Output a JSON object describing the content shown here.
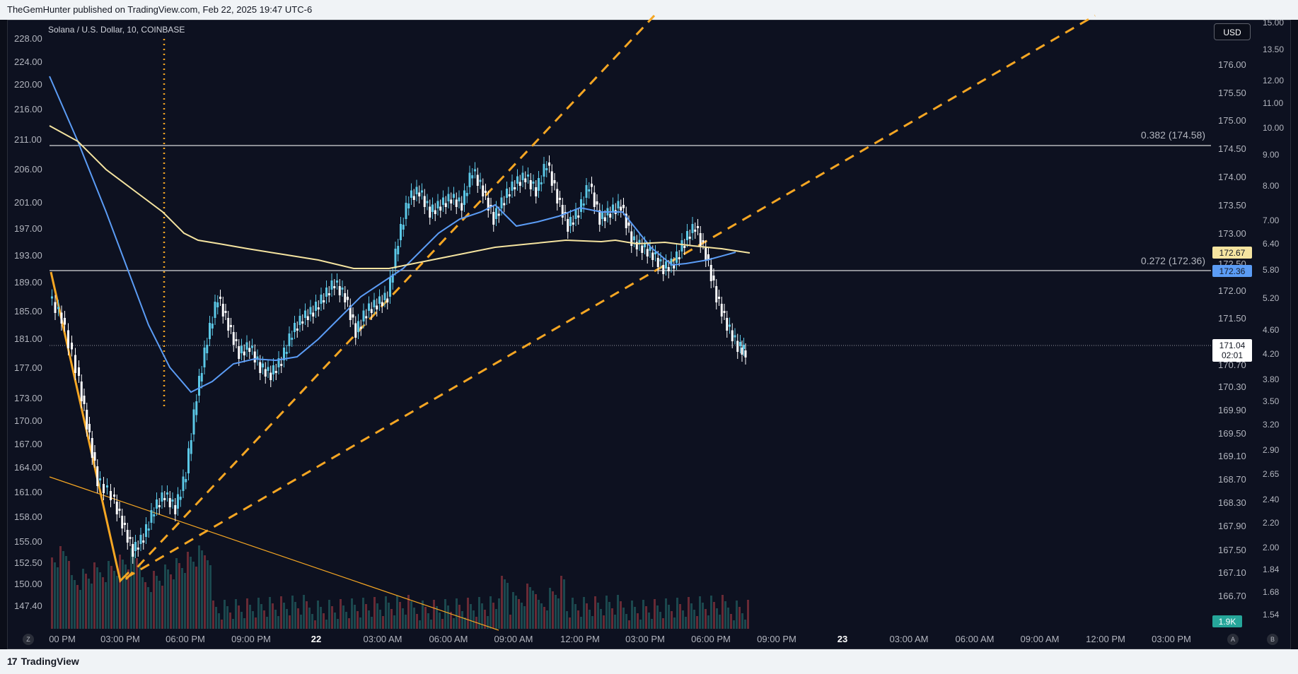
{
  "header": {
    "publisher": "TheGemHunter published on TradingView.com, Feb 22, 2025 19:47 UTC-6"
  },
  "chart": {
    "symbol": "Solana / U.S. Dollar, 10, COINBASE",
    "currency_button": "USD",
    "left_axis": [
      "228.00",
      "224.00",
      "220.00",
      "216.00",
      "211.00",
      "206.00",
      "201.00",
      "197.00",
      "193.00",
      "189.00",
      "185.00",
      "181.00",
      "177.00",
      "173.00",
      "170.00",
      "167.00",
      "164.00",
      "161.00",
      "158.00",
      "155.00",
      "152.50",
      "150.00",
      "147.40"
    ],
    "right_price_axis": [
      "176.00",
      "175.50",
      "175.00",
      "174.50",
      "174.00",
      "173.50",
      "173.00",
      "172.50",
      "172.00",
      "171.50",
      "170.70",
      "170.30",
      "169.90",
      "169.50",
      "169.10",
      "168.70",
      "168.30",
      "167.90",
      "167.50",
      "167.10",
      "166.70"
    ],
    "far_right_axis": [
      "15.00",
      "13.50",
      "12.00",
      "11.00",
      "10.00",
      "9.00",
      "8.00",
      "7.00",
      "6.40",
      "5.80",
      "5.20",
      "4.60",
      "4.20",
      "3.80",
      "3.50",
      "3.20",
      "2.90",
      "2.65",
      "2.40",
      "2.20",
      "2.00",
      "1.84",
      "1.68",
      "1.54"
    ],
    "time_axis": [
      "00 PM",
      "03:00 PM",
      "06:00 PM",
      "09:00 PM",
      "22",
      "03:00 AM",
      "06:00 AM",
      "09:00 AM",
      "12:00 PM",
      "03:00 PM",
      "06:00 PM",
      "09:00 PM",
      "23",
      "03:00 AM",
      "06:00 AM",
      "09:00 AM",
      "12:00 PM",
      "03:00 PM"
    ],
    "fib_upper_label": "0.382 (174.58)",
    "fib_lower_label": "0.272 (172.36)",
    "tag_yellow": "172.67",
    "tag_blue": "172.36",
    "tag_current_price": "171.04",
    "tag_countdown": "02:01",
    "tag_volume": "1.9K",
    "btn_z": "Z",
    "btn_a": "A",
    "btn_b": "B",
    "colors": {
      "up": "#5bc8e6",
      "down": "#ffffff",
      "ma_blue": "#5b9cf5",
      "ma_yellow": "#f5e4a0",
      "trend": "#f5a623",
      "background": "#0d1120"
    }
  },
  "footer": {
    "brand": "TradingView",
    "brand_icon": "tradingview-logo-icon"
  }
}
